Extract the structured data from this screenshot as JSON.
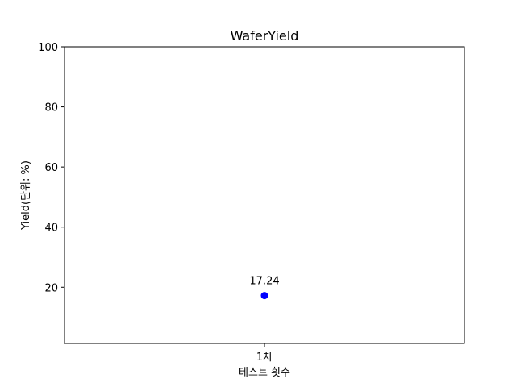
{
  "chart_data": {
    "type": "scatter",
    "title": "WaferYield",
    "xlabel": "테스트 횟수",
    "ylabel": "Yield(단위: %)",
    "categories": [
      "1차"
    ],
    "series": [
      {
        "values": [
          17.24
        ],
        "color": "#0000ff"
      }
    ],
    "data_labels": [
      "17.24"
    ],
    "ylim": [
      1.3,
      100
    ],
    "yticks": [
      20,
      40,
      60,
      80,
      100
    ],
    "grid": false
  }
}
